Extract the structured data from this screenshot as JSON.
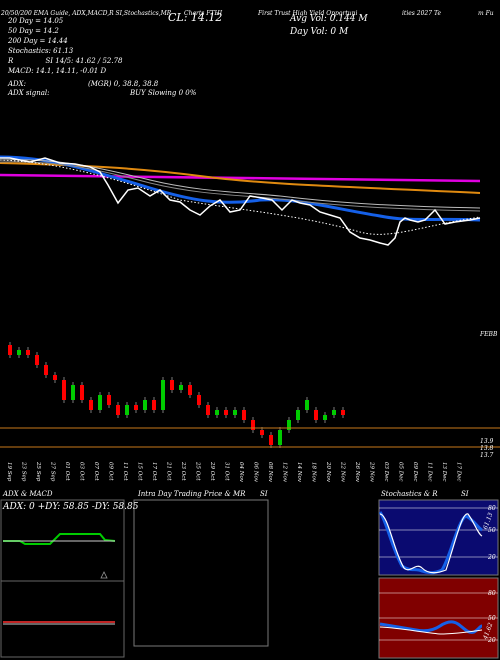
{
  "header": {
    "top_left": "20/50/200 EMA Guide, ADX,MACD,R SI,Stochastics,MR",
    "chart_title": "Charts FTHI",
    "fund_name": "First Trust High Yield Opportuni",
    "fund_name_end": "ities 2027 Te",
    "far_right": "m Fu",
    "close_label": "CL: 14.12",
    "avg_vol_label": "Avg Vol: 0.144  M",
    "day_vol_label": "Day Vol: 0  M",
    "ema20": "20 Day = 14.05",
    "ema50": "50 Day = 14.2",
    "ema200": "200 Day = 14.44",
    "stochastics": "Stochastics: 61.13",
    "rsi": "SI 14/5: 41.62 / 52.78",
    "rsi_prefix": "R",
    "macd": "MACD: 14.1, 14.11, -0.01 D",
    "adx_label": "ADX:",
    "mgr_label": "(MGR) 0, 38.8, 38.8",
    "adx_signal_label": "ADX signal:",
    "buy_signal": "BUY Slowing 0 0%"
  },
  "colors": {
    "ema20": "#1560e8",
    "ema50": "#e08a10",
    "ema200": "#e000e0",
    "up_candle": "#00cc00",
    "down_candle": "#ff0000",
    "stoch_panel": "#0a0a70",
    "rsi_panel": "#800000"
  },
  "price_labels": {
    "upper": "FEBB",
    "l1": "13.9",
    "l2": "13.8",
    "l3": "13.7"
  },
  "date_labels": [
    "19 Sep",
    "23 Sep",
    "25 Sep",
    "27 Sep",
    "01 Oct",
    "03 Oct",
    "07 Oct",
    "09 Oct",
    "11 Oct",
    "15 Oct",
    "17 Oct",
    "21 Oct",
    "23 Oct",
    "25 Oct",
    "29 Oct",
    "31 Oct",
    "04 Nov",
    "06 Nov",
    "08 Nov",
    "12 Nov",
    "14 Nov",
    "18 Nov",
    "20 Nov",
    "22 Nov",
    "26 Nov",
    "29 Nov",
    "03 Dec",
    "05 Dec",
    "09 Dec",
    "11 Dec",
    "13 Dec",
    "17 Dec"
  ],
  "panels": {
    "adx_title": "ADX  & MACD",
    "adx_values": "ADX: 0  +DY: 58.85  -DY: 58.85",
    "intraday_title": "Intra Day Trading Price  & MR",
    "intraday_title_end": "SI",
    "stoch_title": "Stochastics & R",
    "stoch_title_end": "SI",
    "stoch_k_label": "61.13",
    "stoch_levels": [
      "80",
      "50",
      "20"
    ],
    "rsi_levels": [
      "80",
      "50",
      "20"
    ],
    "rsi_label": "41.62"
  },
  "chart_data": {
    "type": "line",
    "title": "Charts FTHI",
    "series": [
      {
        "name": "20 Day",
        "values": [
          0.83,
          0.84,
          0.84,
          0.82,
          0.78,
          0.72,
          0.66,
          0.58,
          0.52,
          0.45,
          0.36,
          0.3,
          0.25,
          0.23,
          0.22,
          0.22,
          0.23,
          0.24,
          0.26,
          0.29,
          0.33,
          0.37,
          0.4,
          0.43,
          0.45,
          0.43,
          0.38,
          0.33,
          0.3,
          0.3,
          0.31,
          0.32
        ]
      },
      {
        "name": "50 Day",
        "values": [
          0.88,
          0.88,
          0.87,
          0.86,
          0.84,
          0.82,
          0.8,
          0.78,
          0.75,
          0.72,
          0.69,
          0.66,
          0.64,
          0.62,
          0.61,
          0.6,
          0.59,
          0.58,
          0.57,
          0.56,
          0.55,
          0.54,
          0.53,
          0.52,
          0.51,
          0.5,
          0.49,
          0.48,
          0.48,
          0.47,
          0.47,
          0.46
        ]
      },
      {
        "name": "200 Day",
        "values": [
          0.78,
          0.78,
          0.78,
          0.78,
          0.78,
          0.78,
          0.78,
          0.78,
          0.78,
          0.78,
          0.78,
          0.78,
          0.78,
          0.78,
          0.78,
          0.78,
          0.78,
          0.78,
          0.78,
          0.78,
          0.78,
          0.78,
          0.78,
          0.78,
          0.78,
          0.77,
          0.77,
          0.77,
          0.77,
          0.77,
          0.77,
          0.77
        ]
      }
    ],
    "candles": [
      {
        "o": 13.97,
        "c": 13.95
      },
      {
        "o": 13.95,
        "c": 13.96
      },
      {
        "o": 13.96,
        "c": 13.95
      },
      {
        "o": 13.95,
        "c": 13.93
      },
      {
        "o": 13.93,
        "c": 13.91
      },
      {
        "o": 13.91,
        "c": 13.9
      },
      {
        "o": 13.9,
        "c": 13.86
      },
      {
        "o": 13.86,
        "c": 13.89
      },
      {
        "o": 13.89,
        "c": 13.86
      },
      {
        "o": 13.86,
        "c": 13.84
      },
      {
        "o": 13.84,
        "c": 13.87
      },
      {
        "o": 13.87,
        "c": 13.85
      },
      {
        "o": 13.85,
        "c": 13.83
      },
      {
        "o": 13.83,
        "c": 13.85
      },
      {
        "o": 13.85,
        "c": 13.84
      },
      {
        "o": 13.84,
        "c": 13.86
      },
      {
        "o": 13.86,
        "c": 13.84
      },
      {
        "o": 13.84,
        "c": 13.9
      },
      {
        "o": 13.9,
        "c": 13.88
      },
      {
        "o": 13.88,
        "c": 13.89
      },
      {
        "o": 13.89,
        "c": 13.87
      },
      {
        "o": 13.87,
        "c": 13.85
      },
      {
        "o": 13.85,
        "c": 13.83
      },
      {
        "o": 13.83,
        "c": 13.84
      },
      {
        "o": 13.84,
        "c": 13.83
      },
      {
        "o": 13.83,
        "c": 13.84
      },
      {
        "o": 13.84,
        "c": 13.82
      },
      {
        "o": 13.82,
        "c": 13.8
      },
      {
        "o": 13.8,
        "c": 13.79
      },
      {
        "o": 13.79,
        "c": 13.77
      },
      {
        "o": 13.77,
        "c": 13.8
      },
      {
        "o": 13.8,
        "c": 13.82
      },
      {
        "o": 13.82,
        "c": 13.84
      },
      {
        "o": 13.84,
        "c": 13.86
      },
      {
        "o": 13.84,
        "c": 13.82
      },
      {
        "o": 13.82,
        "c": 13.83
      },
      {
        "o": 13.83,
        "c": 13.84
      },
      {
        "o": 13.84,
        "c": 13.83
      }
    ],
    "ylim": [
      13.75,
      14.0
    ]
  }
}
